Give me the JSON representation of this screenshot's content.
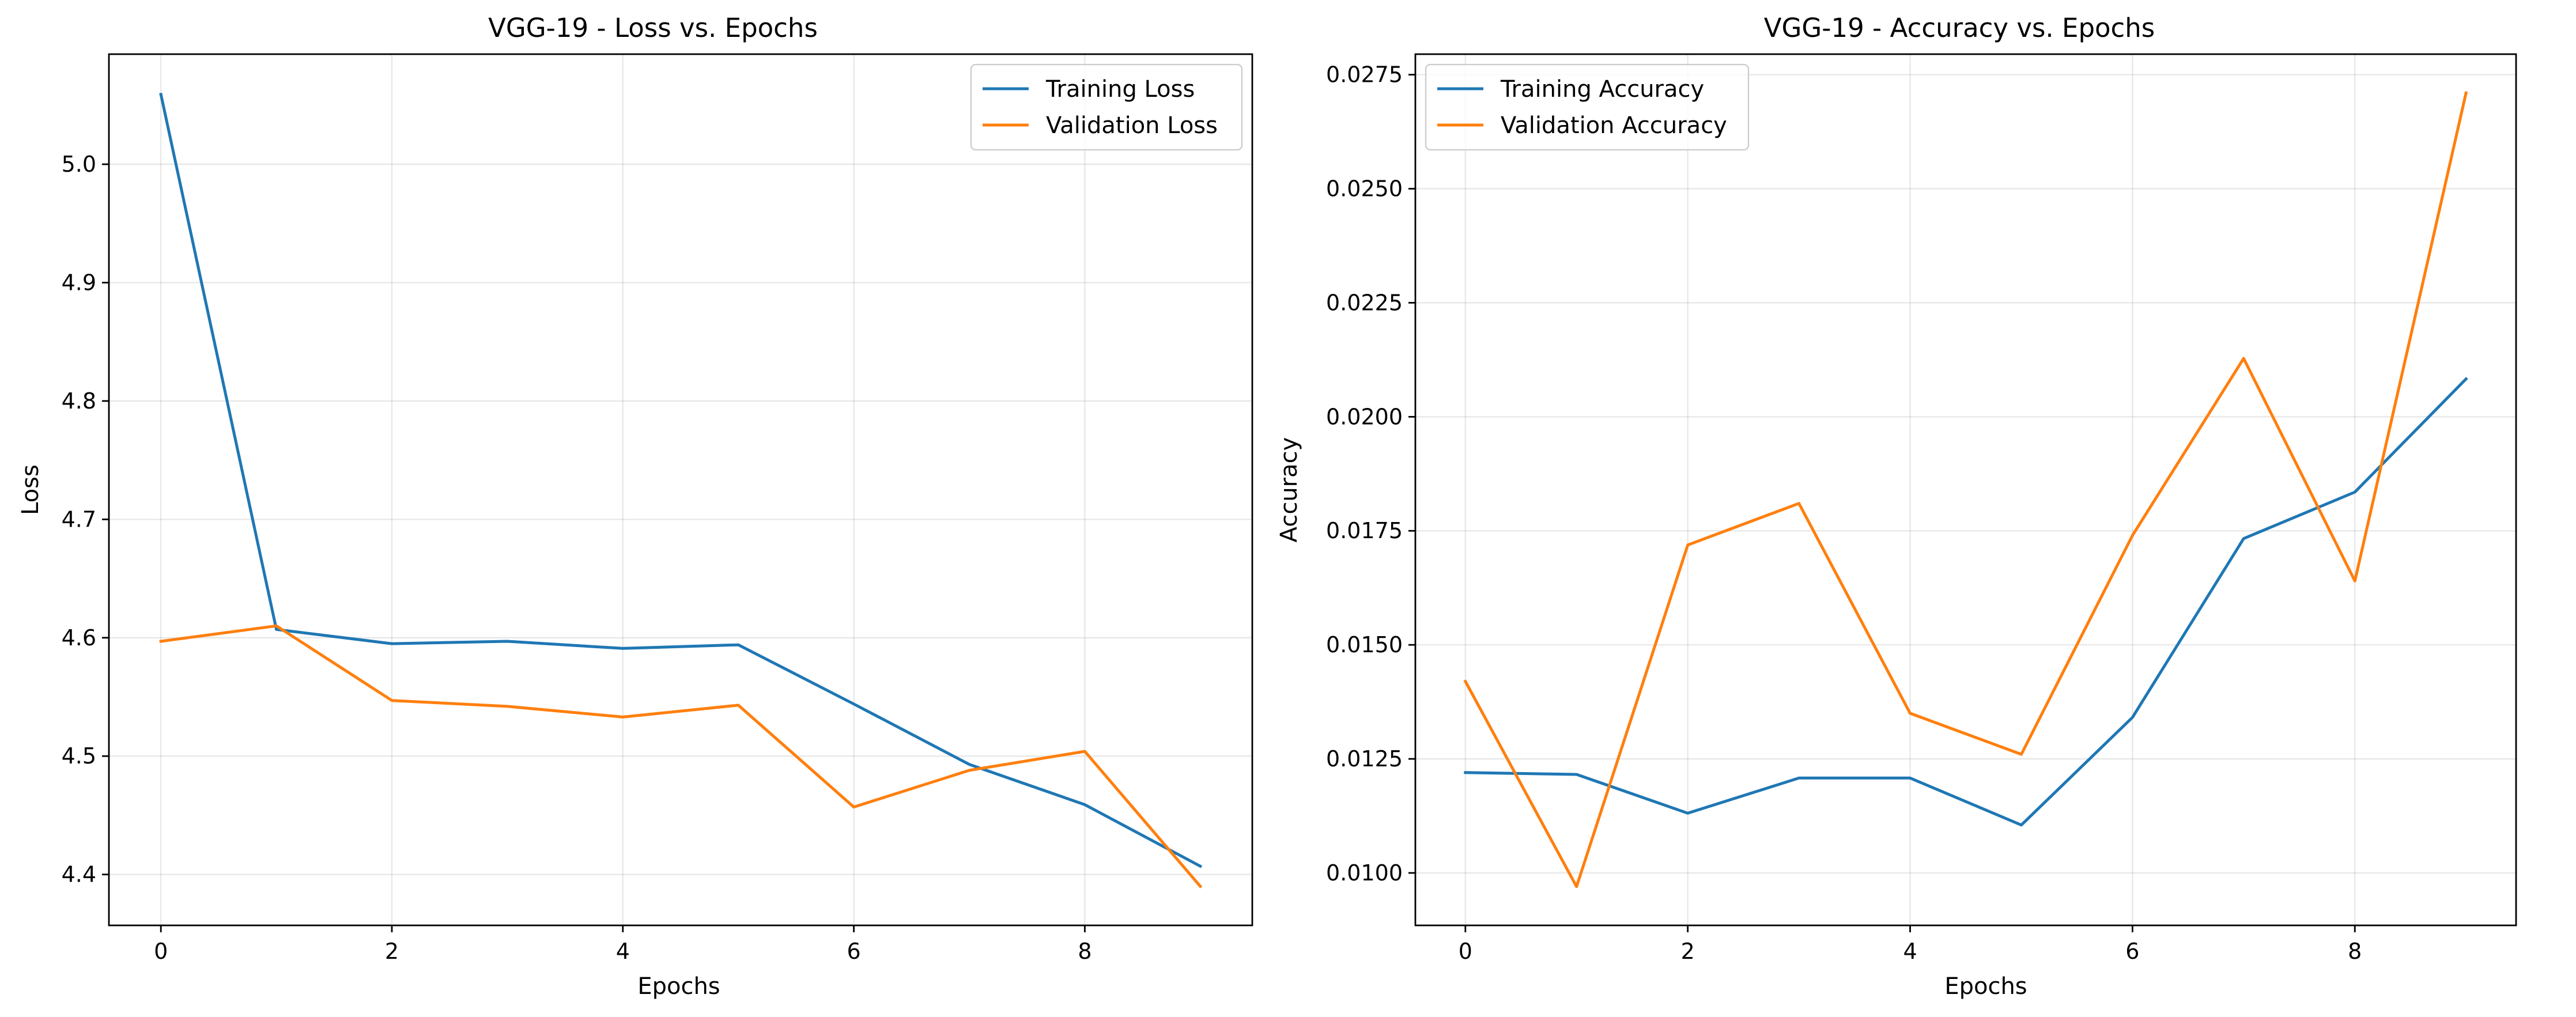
{
  "colors": {
    "training": "#1f77b4",
    "validation": "#ff7f0e"
  },
  "chart_data": [
    {
      "type": "line",
      "title": "VGG-19 - Loss vs. Epochs",
      "xlabel": "Epochs",
      "ylabel": "Loss",
      "xlim": [
        -0.45,
        9.45
      ],
      "ylim": [
        4.357,
        5.093
      ],
      "xticks": [
        0,
        2,
        4,
        6,
        8
      ],
      "xtick_labels": [
        "0",
        "2",
        "4",
        "6",
        "8"
      ],
      "yticks": [
        4.4,
        4.5,
        4.6,
        4.7,
        4.8,
        4.9,
        5.0
      ],
      "ytick_labels": [
        "4.4",
        "4.5",
        "4.6",
        "4.7",
        "4.8",
        "4.9",
        "5.0"
      ],
      "grid": true,
      "legend_position": "top-right",
      "x": [
        0,
        1,
        2,
        3,
        4,
        5,
        6,
        7,
        8,
        9
      ],
      "series": [
        {
          "name": "Training Loss",
          "color": "#1f77b4",
          "values": [
            5.059,
            4.607,
            4.595,
            4.597,
            4.591,
            4.594,
            4.544,
            4.493,
            4.459,
            4.407
          ]
        },
        {
          "name": "Validation Loss",
          "color": "#ff7f0e",
          "values": [
            4.597,
            4.61,
            4.547,
            4.542,
            4.533,
            4.543,
            4.457,
            4.488,
            4.504,
            4.39
          ]
        }
      ]
    },
    {
      "type": "line",
      "title": "VGG-19 - Accuracy vs. Epochs",
      "xlabel": "Epochs",
      "ylabel": "Accuracy",
      "xlim": [
        -0.45,
        9.45
      ],
      "ylim": [
        0.00885,
        0.02795
      ],
      "xticks": [
        0,
        2,
        4,
        6,
        8
      ],
      "xtick_labels": [
        "0",
        "2",
        "4",
        "6",
        "8"
      ],
      "yticks": [
        0.01,
        0.0125,
        0.015,
        0.0175,
        0.02,
        0.0225,
        0.025,
        0.0275
      ],
      "ytick_labels": [
        "0.0100",
        "0.0125",
        "0.0150",
        "0.0175",
        "0.0200",
        "0.0225",
        "0.0250",
        "0.0275"
      ],
      "grid": true,
      "legend_position": "top-left",
      "x": [
        0,
        1,
        2,
        3,
        4,
        5,
        6,
        7,
        8,
        9
      ],
      "series": [
        {
          "name": "Training Accuracy",
          "color": "#1f77b4",
          "values": [
            0.0122,
            0.01216,
            0.01131,
            0.01208,
            0.01208,
            0.01105,
            0.01341,
            0.01733,
            0.01835,
            0.02083
          ]
        },
        {
          "name": "Validation Accuracy",
          "color": "#ff7f0e",
          "values": [
            0.0142,
            0.0097,
            0.01719,
            0.0181,
            0.0135,
            0.0126,
            0.0174,
            0.02128,
            0.0164,
            0.0271
          ]
        }
      ]
    }
  ]
}
